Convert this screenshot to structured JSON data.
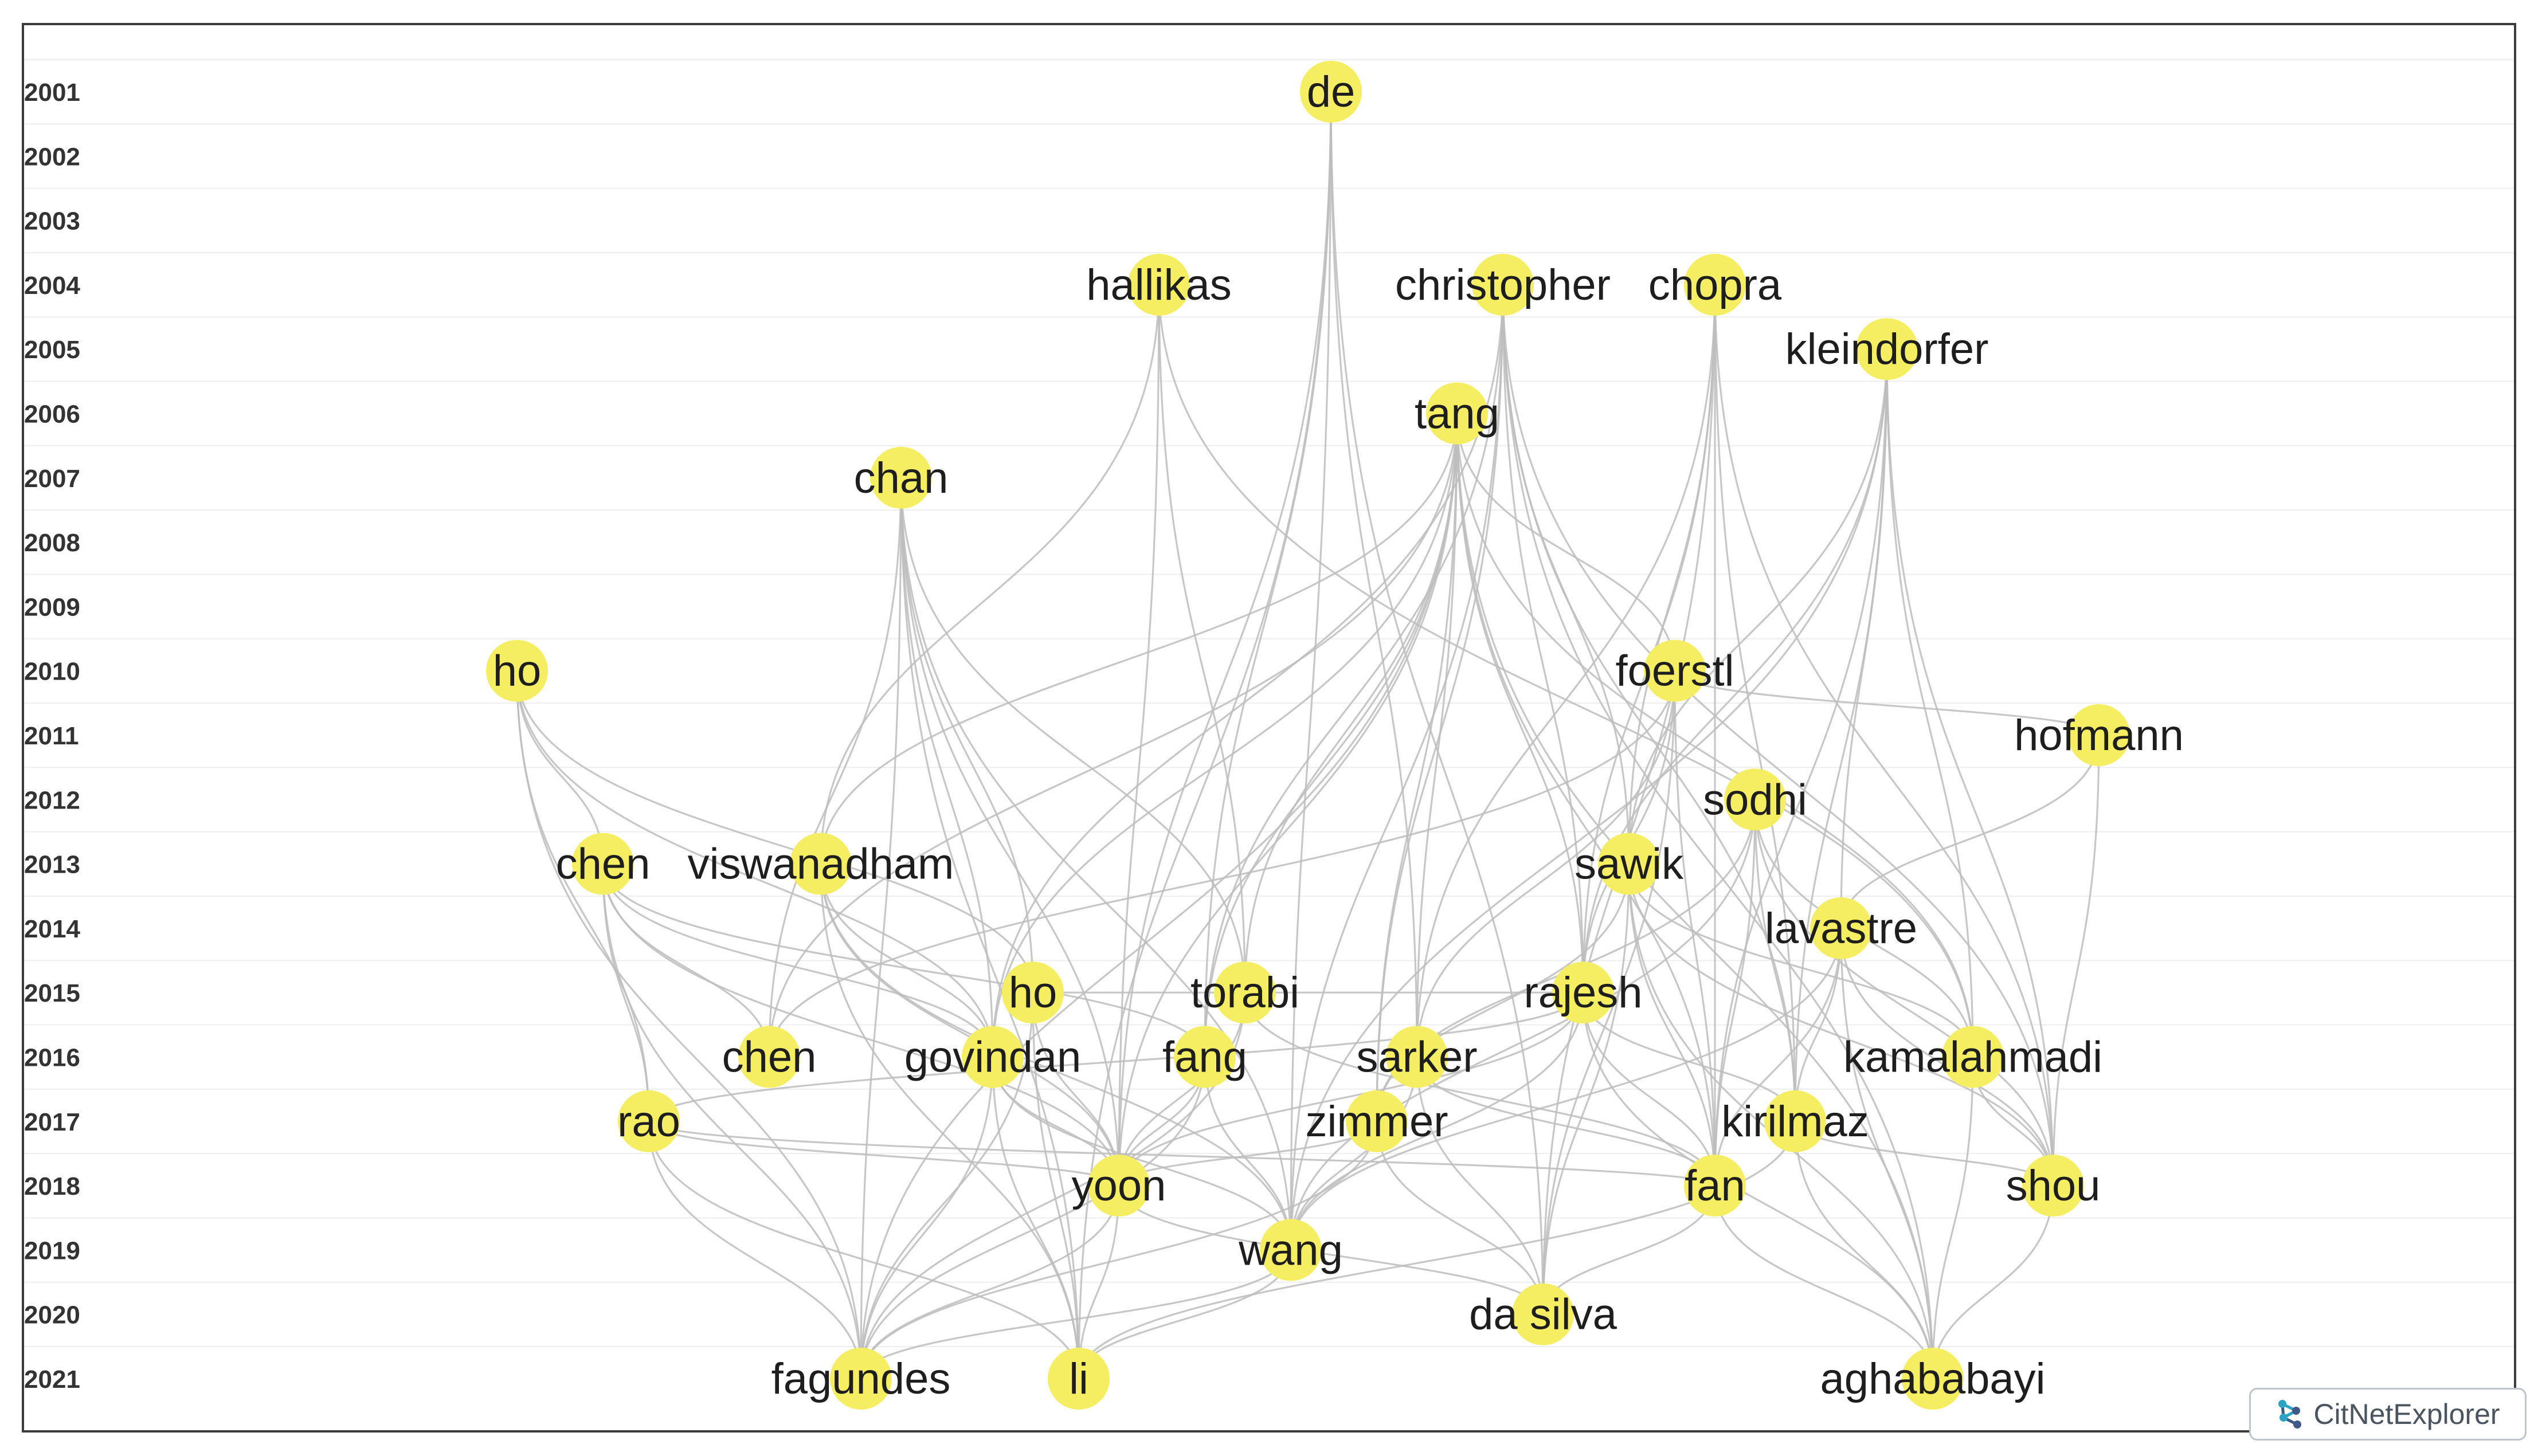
{
  "years": [
    "2001",
    "2002",
    "2003",
    "2004",
    "2005",
    "2006",
    "2007",
    "2008",
    "2009",
    "2010",
    "2011",
    "2012",
    "2013",
    "2014",
    "2015",
    "2016",
    "2017",
    "2018",
    "2019",
    "2020",
    "2021"
  ],
  "colors": {
    "node": "#f6ee62",
    "edge": "#bdbdbd",
    "grid": "#eeeeee"
  },
  "nodes": [
    {
      "id": "de",
      "label": "de",
      "year": "2001"
    },
    {
      "id": "hallikas",
      "label": "hallikas",
      "year": "2004"
    },
    {
      "id": "christopher",
      "label": "christopher",
      "year": "2004"
    },
    {
      "id": "chopra",
      "label": "chopra",
      "year": "2004"
    },
    {
      "id": "kleindorfer",
      "label": "kleindorfer",
      "year": "2005"
    },
    {
      "id": "tang",
      "label": "tang",
      "year": "2006"
    },
    {
      "id": "chan",
      "label": "chan",
      "year": "2007"
    },
    {
      "id": "ho2010",
      "label": "ho",
      "year": "2010"
    },
    {
      "id": "foerstl",
      "label": "foerstl",
      "year": "2010"
    },
    {
      "id": "hofmann",
      "label": "hofmann",
      "year": "2011"
    },
    {
      "id": "sodhi",
      "label": "sodhi",
      "year": "2012"
    },
    {
      "id": "chen2013",
      "label": "chen",
      "year": "2013"
    },
    {
      "id": "viswanadham",
      "label": "viswanadham",
      "year": "2013"
    },
    {
      "id": "sawik",
      "label": "sawik",
      "year": "2013"
    },
    {
      "id": "lavastre",
      "label": "lavastre",
      "year": "2014"
    },
    {
      "id": "ho2015",
      "label": "ho",
      "year": "2015"
    },
    {
      "id": "torabi",
      "label": "torabi",
      "year": "2015"
    },
    {
      "id": "rajesh",
      "label": "rajesh",
      "year": "2015"
    },
    {
      "id": "chen2016",
      "label": "chen",
      "year": "2016"
    },
    {
      "id": "govindan",
      "label": "govindan",
      "year": "2016"
    },
    {
      "id": "fang",
      "label": "fang",
      "year": "2016"
    },
    {
      "id": "sarker",
      "label": "sarker",
      "year": "2016"
    },
    {
      "id": "kamalahmadi",
      "label": "kamalahmadi",
      "year": "2016"
    },
    {
      "id": "rao",
      "label": "rao",
      "year": "2017"
    },
    {
      "id": "zimmer",
      "label": "zimmer",
      "year": "2017"
    },
    {
      "id": "kirilmaz",
      "label": "kirilmaz",
      "year": "2017"
    },
    {
      "id": "yoon",
      "label": "yoon",
      "year": "2018"
    },
    {
      "id": "fan",
      "label": "fan",
      "year": "2018"
    },
    {
      "id": "shou",
      "label": "shou",
      "year": "2018"
    },
    {
      "id": "wang",
      "label": "wang",
      "year": "2019"
    },
    {
      "id": "dasilva",
      "label": "da silva",
      "year": "2020"
    },
    {
      "id": "fagundes",
      "label": "fagundes",
      "year": "2021"
    },
    {
      "id": "li",
      "label": "li",
      "year": "2021"
    },
    {
      "id": "aghababayi",
      "label": "aghababayi",
      "year": "2021"
    }
  ],
  "edges": [
    [
      "de",
      "fang"
    ],
    [
      "de",
      "li"
    ],
    [
      "de",
      "sarker"
    ],
    [
      "de",
      "wang"
    ],
    [
      "de",
      "dasilva"
    ],
    [
      "de",
      "yoon"
    ],
    [
      "hallikas",
      "viswanadham"
    ],
    [
      "hallikas",
      "torabi"
    ],
    [
      "hallikas",
      "yoon"
    ],
    [
      "hallikas",
      "kamalahmadi"
    ],
    [
      "christopher",
      "govindan"
    ],
    [
      "christopher",
      "fang"
    ],
    [
      "christopher",
      "rajesh"
    ],
    [
      "christopher",
      "sawik"
    ],
    [
      "christopher",
      "kirilmaz"
    ],
    [
      "christopher",
      "aghababayi"
    ],
    [
      "christopher",
      "zimmer"
    ],
    [
      "christopher",
      "shou"
    ],
    [
      "christopher",
      "wang"
    ],
    [
      "chopra",
      "sawik"
    ],
    [
      "chopra",
      "rajesh"
    ],
    [
      "chopra",
      "fan"
    ],
    [
      "chopra",
      "kirilmaz"
    ],
    [
      "chopra",
      "shou"
    ],
    [
      "chopra",
      "dasilva"
    ],
    [
      "chopra",
      "sarker"
    ],
    [
      "kleindorfer",
      "lavastre"
    ],
    [
      "kleindorfer",
      "rajesh"
    ],
    [
      "kleindorfer",
      "fan"
    ],
    [
      "kleindorfer",
      "kamalahmadi"
    ],
    [
      "kleindorfer",
      "wang"
    ],
    [
      "kleindorfer",
      "kirilmaz"
    ],
    [
      "kleindorfer",
      "shou"
    ],
    [
      "kleindorfer",
      "sawik"
    ],
    [
      "tang",
      "chen2016"
    ],
    [
      "tang",
      "govindan"
    ],
    [
      "tang",
      "torabi"
    ],
    [
      "tang",
      "fang"
    ],
    [
      "tang",
      "sarker"
    ],
    [
      "tang",
      "yoon"
    ],
    [
      "tang",
      "rajesh"
    ],
    [
      "tang",
      "aghababayi"
    ],
    [
      "tang",
      "fan"
    ],
    [
      "tang",
      "fagundes"
    ],
    [
      "tang",
      "zimmer"
    ],
    [
      "tang",
      "kamalahmadi"
    ],
    [
      "tang",
      "foerstl"
    ],
    [
      "tang",
      "viswanadham"
    ],
    [
      "chan",
      "ho2015"
    ],
    [
      "chan",
      "govindan"
    ],
    [
      "chan",
      "yoon"
    ],
    [
      "chan",
      "fagundes"
    ],
    [
      "chan",
      "li"
    ],
    [
      "chan",
      "chen2016"
    ],
    [
      "chan",
      "torabi"
    ],
    [
      "chan",
      "wang"
    ],
    [
      "ho2010",
      "chen2013"
    ],
    [
      "ho2010",
      "rao"
    ],
    [
      "ho2010",
      "fagundes"
    ],
    [
      "ho2010",
      "govindan"
    ],
    [
      "ho2010",
      "ho2015"
    ],
    [
      "foerstl",
      "rajesh"
    ],
    [
      "foerstl",
      "fan"
    ],
    [
      "foerstl",
      "dasilva"
    ],
    [
      "foerstl",
      "hofmann"
    ],
    [
      "foerstl",
      "sarker"
    ],
    [
      "foerstl",
      "chen2016"
    ],
    [
      "hofmann",
      "lavastre"
    ],
    [
      "hofmann",
      "shou"
    ],
    [
      "sodhi",
      "kamalahmadi"
    ],
    [
      "sodhi",
      "shou"
    ],
    [
      "sodhi",
      "wang"
    ],
    [
      "sodhi",
      "zimmer"
    ],
    [
      "sodhi",
      "kirilmaz"
    ],
    [
      "sodhi",
      "fan"
    ],
    [
      "chen2013",
      "chen2016"
    ],
    [
      "chen2013",
      "rao"
    ],
    [
      "chen2013",
      "yoon"
    ],
    [
      "chen2013",
      "fagundes"
    ],
    [
      "chen2013",
      "govindan"
    ],
    [
      "chen2013",
      "fang"
    ],
    [
      "viswanadham",
      "yoon"
    ],
    [
      "viswanadham",
      "li"
    ],
    [
      "viswanadham",
      "wang"
    ],
    [
      "viswanadham",
      "govindan"
    ],
    [
      "sawik",
      "fan"
    ],
    [
      "sawik",
      "aghababayi"
    ],
    [
      "sawik",
      "shou"
    ],
    [
      "sawik",
      "kamalahmadi"
    ],
    [
      "sawik",
      "dasilva"
    ],
    [
      "sawik",
      "zimmer"
    ],
    [
      "lavastre",
      "kirilmaz"
    ],
    [
      "lavastre",
      "fan"
    ],
    [
      "lavastre",
      "shou"
    ],
    [
      "lavastre",
      "aghababayi"
    ],
    [
      "lavastre",
      "wang"
    ],
    [
      "ho2015",
      "yoon"
    ],
    [
      "ho2015",
      "li"
    ],
    [
      "ho2015",
      "fagundes"
    ],
    [
      "ho2015",
      "rajesh"
    ],
    [
      "torabi",
      "yoon"
    ],
    [
      "torabi",
      "fagundes"
    ],
    [
      "torabi",
      "fan"
    ],
    [
      "rajesh",
      "fan"
    ],
    [
      "rajesh",
      "aghababayi"
    ],
    [
      "rajesh",
      "wang"
    ],
    [
      "rajesh",
      "yoon"
    ],
    [
      "rajesh",
      "rao"
    ],
    [
      "rajesh",
      "kirilmaz"
    ],
    [
      "govindan",
      "yoon"
    ],
    [
      "govindan",
      "li"
    ],
    [
      "govindan",
      "fagundes"
    ],
    [
      "govindan",
      "wang"
    ],
    [
      "fang",
      "fagundes"
    ],
    [
      "fang",
      "wang"
    ],
    [
      "fang",
      "yoon"
    ],
    [
      "sarker",
      "wang"
    ],
    [
      "sarker",
      "fan"
    ],
    [
      "sarker",
      "dasilva"
    ],
    [
      "kamalahmadi",
      "shou"
    ],
    [
      "kamalahmadi",
      "aghababayi"
    ],
    [
      "rao",
      "fagundes"
    ],
    [
      "rao",
      "yoon"
    ],
    [
      "rao",
      "li"
    ],
    [
      "rao",
      "fan"
    ],
    [
      "zimmer",
      "yoon"
    ],
    [
      "zimmer",
      "dasilva"
    ],
    [
      "zimmer",
      "fagundes"
    ],
    [
      "kirilmaz",
      "aghababayi"
    ],
    [
      "kirilmaz",
      "shou"
    ],
    [
      "kirilmaz",
      "li"
    ],
    [
      "yoon",
      "li"
    ],
    [
      "yoon",
      "fagundes"
    ],
    [
      "yoon",
      "dasilva"
    ],
    [
      "fan",
      "aghababayi"
    ],
    [
      "fan",
      "dasilva"
    ],
    [
      "shou",
      "aghababayi"
    ],
    [
      "wang",
      "li"
    ],
    [
      "wang",
      "fagundes"
    ]
  ],
  "brand": {
    "icon": "network-logo-icon",
    "label": "CitNetExplorer"
  }
}
